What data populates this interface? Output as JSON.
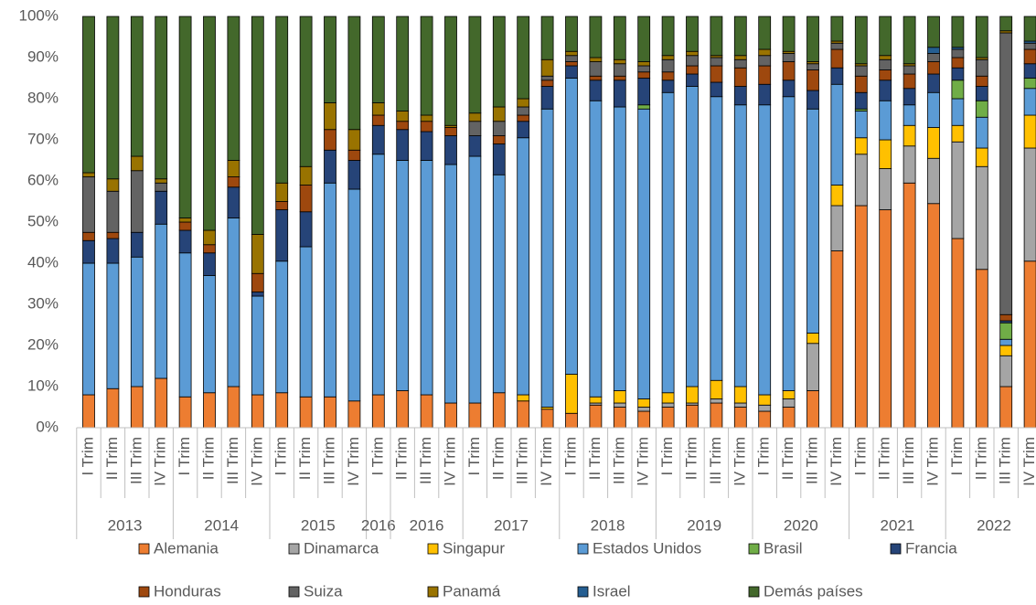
{
  "chart_data": {
    "type": "stacked_bar",
    "groups": [
      {
        "name": "2013",
        "quarters": [
          "I Trim",
          "II Trim",
          "III Trim",
          "IV Trim"
        ]
      },
      {
        "name": "2014",
        "quarters": [
          "I Trim",
          "II Trim",
          "III Trim",
          "IV Trim"
        ]
      },
      {
        "name": "2015",
        "quarters": [
          "I Trim",
          "II Trim",
          "III Trim",
          "IV Trim"
        ]
      },
      {
        "name": "2016",
        "quarters": [
          "I Trim"
        ]
      },
      {
        "name": "2016",
        "quarters": [
          "II Trim",
          "III Trim",
          "IV Trim"
        ]
      },
      {
        "name": "2017",
        "quarters": [
          "I Trim",
          "II Trim",
          "III Trim",
          "IV Trim"
        ]
      },
      {
        "name": "2018",
        "quarters": [
          "I Trim",
          "II Trim",
          "III Trim",
          "IV Trim"
        ]
      },
      {
        "name": "2019",
        "quarters": [
          "I Trim",
          "II Trim",
          "III Trim",
          "IV Trim"
        ]
      },
      {
        "name": "2020",
        "quarters": [
          "I Trim",
          "II Trim",
          "III Trim",
          "IV Trim"
        ]
      },
      {
        "name": "2021",
        "quarters": [
          "I Trim",
          "II Trim",
          "III Trim",
          "IV Trim"
        ]
      },
      {
        "name": "2022",
        "quarters": [
          "I Trim",
          "II Trim",
          "III Trim",
          "IV Trim"
        ]
      }
    ],
    "ylim": [
      0,
      100
    ],
    "yticks": [
      {
        "value": 0,
        "label": "0%"
      },
      {
        "value": 10,
        "label": "10%"
      },
      {
        "value": 20,
        "label": "20%"
      },
      {
        "value": 30,
        "label": "30%"
      },
      {
        "value": 40,
        "label": "40%"
      },
      {
        "value": 50,
        "label": "50%"
      },
      {
        "value": 60,
        "label": "60%"
      },
      {
        "value": 70,
        "label": "70%"
      },
      {
        "value": 80,
        "label": "80%"
      },
      {
        "value": 90,
        "label": "90%"
      },
      {
        "value": 100,
        "label": "100%"
      }
    ],
    "series": [
      {
        "name": "Alemania",
        "color": "#ED7D31",
        "values": [
          8,
          9.5,
          10,
          12,
          7.5,
          8.5,
          10,
          8,
          8.5,
          7.5,
          7.5,
          6.5,
          8,
          9,
          8,
          6,
          6,
          8.5,
          6.5,
          4.5,
          3.5,
          5.5,
          5,
          4,
          5,
          5.5,
          6,
          5,
          4,
          5,
          9,
          43,
          54,
          53,
          59.5,
          54.5,
          46,
          38.5,
          10,
          40.5
        ]
      },
      {
        "name": "Dinamarca",
        "color": "#A5A5A5",
        "values": [
          0,
          0,
          0,
          0,
          0,
          0,
          0,
          0,
          0,
          0,
          0,
          0,
          0,
          0,
          0,
          0,
          0,
          0,
          0,
          0,
          0,
          0.5,
          1,
          1,
          1,
          0.5,
          1,
          1,
          1.5,
          2,
          11.5,
          11,
          12.5,
          10,
          9,
          11,
          23.5,
          25,
          7.5,
          27.5
        ]
      },
      {
        "name": "Singapur",
        "color": "#FFC000",
        "values": [
          0,
          0,
          0,
          0,
          0,
          0,
          0,
          0,
          0,
          0,
          0,
          0,
          0,
          0,
          0,
          0,
          0,
          0,
          1.5,
          0.5,
          9.5,
          1.5,
          3,
          2,
          2.5,
          4,
          4.5,
          4,
          2.5,
          2,
          2.5,
          5,
          4,
          7,
          5,
          7.5,
          4,
          4.5,
          2.5,
          8
        ]
      },
      {
        "name": "Estados Unidos",
        "color": "#5B9BD5",
        "values": [
          32,
          30.5,
          31.5,
          37.5,
          35,
          28.5,
          41,
          24,
          32,
          36.5,
          52,
          51.5,
          58.5,
          56,
          57,
          58,
          60,
          53,
          62.5,
          72.5,
          72,
          72,
          69,
          70.5,
          73,
          73,
          69,
          68.5,
          70.5,
          71.5,
          54.5,
          24.5,
          6.5,
          9.5,
          5,
          8.5,
          6.5,
          7.5,
          1.5,
          6.5
        ]
      },
      {
        "name": "Brasil",
        "color": "#70AD47",
        "values": [
          0,
          0,
          0,
          0,
          0,
          0,
          0,
          0,
          0,
          0,
          0,
          0,
          0,
          0,
          0,
          0,
          0,
          0,
          0,
          0,
          0,
          0,
          0,
          1,
          0,
          0,
          0,
          0,
          0,
          0,
          0,
          0,
          0.5,
          0,
          0,
          0,
          4.5,
          4,
          4,
          2.5
        ]
      },
      {
        "name": "Francia",
        "color": "#264478",
        "values": [
          5.5,
          6,
          6,
          8,
          5.5,
          5.5,
          7.5,
          1,
          12.5,
          8.5,
          8,
          7,
          7,
          7.5,
          7,
          7,
          5,
          7.5,
          4,
          5.5,
          3,
          5,
          6.5,
          6.5,
          3,
          3,
          3.5,
          4.5,
          5,
          4,
          4.5,
          4,
          4,
          5,
          4,
          4.5,
          3,
          3.5,
          0.5,
          3.5
        ]
      },
      {
        "name": "Honduras",
        "color": "#9E480E",
        "values": [
          2,
          1.5,
          0,
          0,
          2,
          2,
          2.5,
          4.5,
          2,
          6.5,
          5,
          2.5,
          2.5,
          2,
          2.5,
          2,
          0,
          2,
          1.5,
          1.5,
          1,
          1,
          1,
          1.5,
          2,
          2,
          4,
          4.5,
          4.5,
          4.5,
          5,
          4.5,
          4,
          2.5,
          3.5,
          3,
          2.5,
          2.5,
          1.5,
          3.5
        ]
      },
      {
        "name": "Suiza",
        "color": "#636363",
        "values": [
          13.5,
          10,
          15,
          2,
          0,
          0,
          0,
          0,
          0,
          0,
          0,
          0,
          0,
          0,
          0,
          0,
          3.5,
          3.5,
          2,
          1,
          1.5,
          3.5,
          3,
          1.5,
          3,
          2.5,
          2,
          2,
          2.5,
          2,
          1.5,
          1.5,
          2.5,
          2.5,
          2,
          2,
          2,
          4,
          68.5,
          1.5
        ]
      },
      {
        "name": "Panamá",
        "color": "#997300",
        "values": [
          1,
          3,
          3.5,
          1,
          1,
          3.5,
          4,
          9.5,
          4.5,
          4.5,
          6.5,
          5,
          3,
          2.5,
          1.5,
          0.5,
          2,
          3.5,
          2,
          4,
          1,
          1,
          1,
          1,
          1,
          1,
          0.5,
          1,
          1.5,
          0.5,
          0.5,
          0.5,
          0.5,
          1,
          0.5,
          0,
          0,
          0.5,
          0.5,
          0
        ]
      },
      {
        "name": "Israel",
        "color": "#255E91",
        "values": [
          0,
          0,
          0,
          0,
          0,
          0,
          0,
          0,
          0,
          0,
          0,
          0,
          0,
          0,
          0,
          0,
          0,
          0,
          0,
          0,
          0,
          0,
          0,
          0,
          0,
          0,
          0,
          0,
          0,
          0,
          0,
          0,
          0,
          0,
          0,
          1.5,
          0.5,
          0,
          0,
          0.5
        ]
      },
      {
        "name": "Demás países",
        "color": "#43682B",
        "values": [
          38,
          39.5,
          34,
          39.5,
          49,
          52,
          35,
          53,
          40.5,
          36.5,
          21,
          27.5,
          21,
          23,
          24,
          26.5,
          23.5,
          22,
          20,
          10.5,
          8.5,
          10,
          10.5,
          11,
          9.5,
          8.5,
          9.5,
          9.5,
          8,
          8.5,
          11,
          6,
          11.5,
          9.5,
          11.5,
          7.5,
          7.5,
          10,
          3.5,
          6
        ]
      }
    ]
  }
}
